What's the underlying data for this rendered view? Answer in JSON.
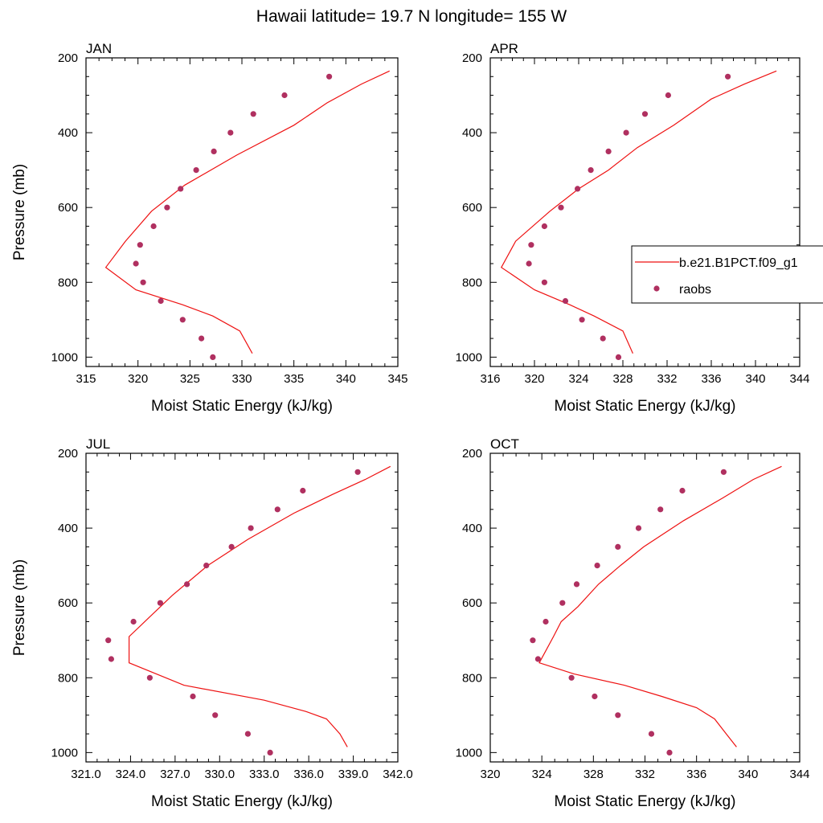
{
  "figure_title": "Hawaii  latitude= 19.7 N longitude= 155 W",
  "legend": {
    "model_label": "b.e21.B1PCT.f09_g1",
    "obs_label": "raobs",
    "line_color": "#ee1111",
    "marker_color": "#b03060"
  },
  "chart_data": [
    {
      "type": "line",
      "title": "JAN",
      "xlabel": "Moist Static Energy (kJ/kg)",
      "ylabel": "Pressure (mb)",
      "xlim": [
        315,
        345
      ],
      "ylim": [
        1025,
        200
      ],
      "xticks": [
        315,
        320,
        325,
        330,
        335,
        340,
        345
      ],
      "xtick_labels": [
        "315",
        "320",
        "325",
        "330",
        "335",
        "340",
        "345"
      ],
      "yticks": [
        200,
        400,
        600,
        800,
        1000
      ],
      "yreversed": true,
      "series": [
        {
          "name": "b.e21.B1PCT.f09_g1",
          "kind": "line",
          "x": [
            344.2,
            341.5,
            338.2,
            335.0,
            329.5,
            324.5,
            321.3,
            318.8,
            316.9,
            319.8,
            324.3,
            327.2,
            329.8,
            331.0
          ],
          "y": [
            235,
            270,
            320,
            380,
            460,
            540,
            610,
            690,
            760,
            820,
            860,
            890,
            930,
            990
          ]
        },
        {
          "name": "raobs",
          "kind": "scatter",
          "x": [
            338.4,
            334.1,
            331.1,
            328.9,
            327.3,
            325.6,
            324.1,
            322.8,
            321.5,
            320.2,
            319.8,
            320.5,
            322.2,
            324.3,
            326.1,
            327.2
          ],
          "y": [
            250,
            300,
            350,
            400,
            450,
            500,
            550,
            600,
            650,
            700,
            750,
            800,
            850,
            900,
            950,
            1000
          ]
        }
      ]
    },
    {
      "type": "line",
      "title": "APR",
      "xlabel": "Moist Static Energy (kJ/kg)",
      "ylabel": "",
      "xlim": [
        316,
        344
      ],
      "ylim": [
        1025,
        200
      ],
      "xticks": [
        316,
        320,
        324,
        328,
        332,
        336,
        340,
        344
      ],
      "xtick_labels": [
        "316",
        "320",
        "324",
        "328",
        "332",
        "336",
        "340",
        "344"
      ],
      "yticks": [
        200,
        400,
        600,
        800,
        1000
      ],
      "yreversed": true,
      "series": [
        {
          "name": "b.e21.B1PCT.f09_g1",
          "kind": "line",
          "x": [
            341.9,
            339.0,
            336.0,
            332.6,
            329.3,
            326.7,
            324.0,
            321.4,
            318.3,
            317.0,
            320.0,
            323.2,
            325.4,
            328.0,
            328.9
          ],
          "y": [
            235,
            270,
            310,
            380,
            440,
            500,
            550,
            610,
            690,
            760,
            820,
            860,
            890,
            930,
            990
          ]
        },
        {
          "name": "raobs",
          "kind": "scatter",
          "x": [
            337.5,
            332.1,
            330.0,
            328.3,
            326.7,
            325.1,
            323.9,
            322.4,
            320.9,
            319.7,
            319.5,
            320.9,
            322.8,
            324.3,
            326.2,
            327.6
          ],
          "y": [
            250,
            300,
            350,
            400,
            450,
            500,
            550,
            600,
            650,
            700,
            750,
            800,
            850,
            900,
            950,
            1000
          ]
        }
      ]
    },
    {
      "type": "line",
      "title": "JUL",
      "xlabel": "Moist Static Energy (kJ/kg)",
      "ylabel": "Pressure (mb)",
      "xlim": [
        321,
        342
      ],
      "ylim": [
        1025,
        200
      ],
      "xticks": [
        321,
        324,
        327,
        330,
        333,
        336,
        339,
        342
      ],
      "xtick_labels": [
        "321.0",
        "324.0",
        "327.0",
        "330.0",
        "333.0",
        "336.0",
        "339.0",
        "342.0"
      ],
      "yticks": [
        200,
        400,
        600,
        800,
        1000
      ],
      "yreversed": true,
      "series": [
        {
          "name": "b.e21.B1PCT.f09_g1",
          "kind": "line",
          "x": [
            341.5,
            339.8,
            337.6,
            335.0,
            331.9,
            329.2,
            326.8,
            323.9,
            323.9,
            327.6,
            333.0,
            335.8,
            337.2,
            338.1,
            338.6
          ],
          "y": [
            235,
            270,
            310,
            360,
            430,
            500,
            580,
            690,
            760,
            820,
            860,
            890,
            910,
            950,
            985
          ]
        },
        {
          "name": "raobs",
          "kind": "scatter",
          "x": [
            339.3,
            335.6,
            333.9,
            332.1,
            330.8,
            329.1,
            327.8,
            326.0,
            324.2,
            322.5,
            322.7,
            325.3,
            328.2,
            329.7,
            331.9,
            333.4
          ],
          "y": [
            250,
            300,
            350,
            400,
            450,
            500,
            550,
            600,
            650,
            700,
            750,
            800,
            850,
            900,
            950,
            1000
          ]
        }
      ]
    },
    {
      "type": "line",
      "title": "OCT",
      "xlabel": "Moist Static Energy (kJ/kg)",
      "ylabel": "",
      "xlim": [
        320,
        344
      ],
      "ylim": [
        1025,
        200
      ],
      "xticks": [
        320,
        324,
        328,
        332,
        336,
        340,
        344
      ],
      "xtick_labels": [
        "320",
        "324",
        "328",
        "332",
        "336",
        "340",
        "344"
      ],
      "yticks": [
        200,
        400,
        600,
        800,
        1000
      ],
      "yreversed": true,
      "series": [
        {
          "name": "b.e21.B1PCT.f09_g1",
          "kind": "line",
          "x": [
            342.6,
            340.4,
            338.0,
            335.0,
            331.9,
            330.1,
            328.4,
            326.8,
            325.5,
            324.9,
            323.8,
            326.5,
            330.4,
            333.3,
            336.0,
            337.4,
            338.3,
            339.1
          ],
          "y": [
            235,
            270,
            320,
            380,
            450,
            500,
            550,
            610,
            650,
            690,
            760,
            790,
            820,
            850,
            880,
            910,
            950,
            985
          ]
        },
        {
          "name": "raobs",
          "kind": "scatter",
          "x": [
            338.1,
            334.9,
            333.2,
            331.5,
            329.9,
            328.3,
            326.7,
            325.6,
            324.3,
            323.3,
            323.7,
            326.3,
            328.1,
            329.9,
            332.5,
            333.9
          ],
          "y": [
            250,
            300,
            350,
            400,
            450,
            500,
            550,
            600,
            650,
            700,
            750,
            800,
            850,
            900,
            950,
            1000
          ]
        }
      ]
    }
  ]
}
